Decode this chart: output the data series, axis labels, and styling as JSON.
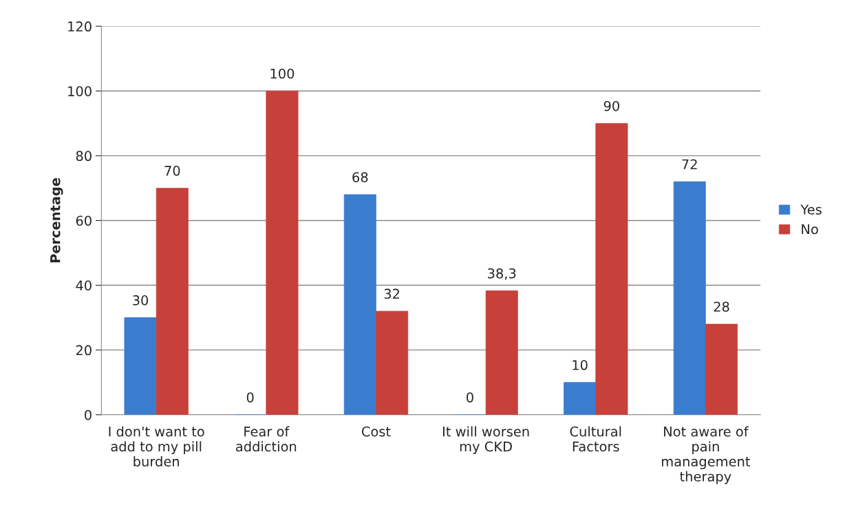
{
  "chart_data": {
    "type": "bar",
    "ylabel": "Percentage",
    "categories": [
      "I don't want to\nadd to my pill\nburden",
      "Fear of\naddiction",
      "Cost",
      "It will worsen\nmy CKD",
      "Cultural\nFactors",
      "Not aware of\npain\nmanagement\ntherapy"
    ],
    "series": [
      {
        "name": "Yes",
        "color": "#3a7dce",
        "values": [
          30,
          0,
          68,
          0,
          10,
          72
        ],
        "value_labels": [
          "30",
          "0",
          "68",
          "0",
          "10",
          "72"
        ]
      },
      {
        "name": "No",
        "color": "#c8403a",
        "values": [
          70,
          100,
          32,
          38.3,
          90,
          28
        ],
        "value_labels": [
          "70",
          "100",
          "32",
          "38,3",
          "90",
          "28"
        ]
      }
    ],
    "ylim": [
      0,
      120
    ],
    "yticks": [
      0,
      20,
      40,
      60,
      80,
      100,
      120
    ],
    "grid": "y",
    "legend": "right"
  }
}
